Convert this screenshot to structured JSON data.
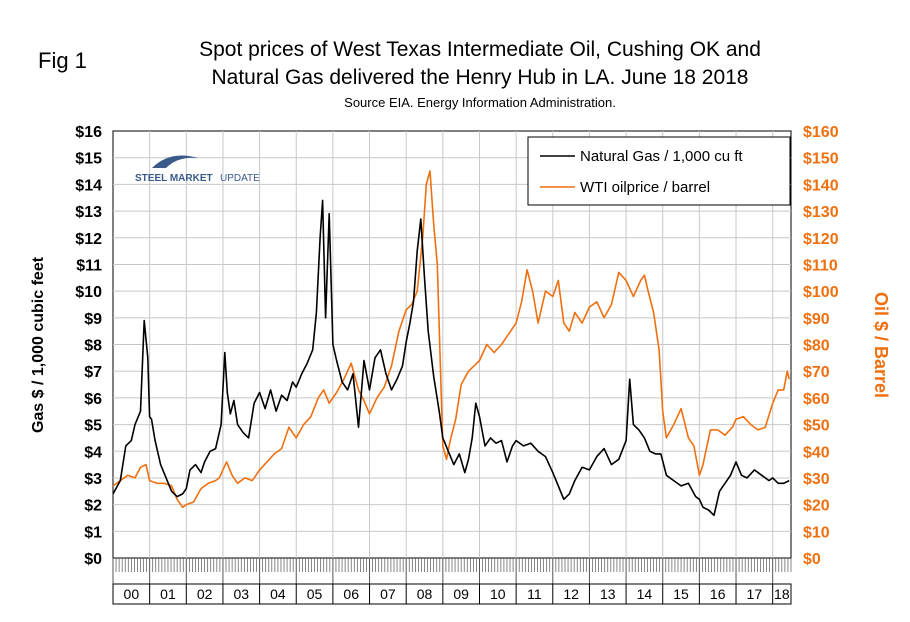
{
  "figure_label": "Fig 1",
  "title_line1": "Spot prices of West Texas Intermediate Oil, Cushing OK and",
  "title_line2": "Natural Gas delivered the Henry Hub in LA. June 18 2018",
  "subtitle": "Source EIA. Energy Information Administration.",
  "logo": {
    "text_bold": "STEEL MARKET",
    "text_light": "UPDATE"
  },
  "colors": {
    "gas": "#000000",
    "oil": "#f07010"
  },
  "chart_data": {
    "type": "line",
    "xlabel": "",
    "ylabel_left": "Gas $ / 1,000 cubic feet",
    "ylabel_right": "Oil $ / Barrel",
    "x_range": [
      2000.0,
      2018.5
    ],
    "ylim_left": [
      0,
      16
    ],
    "ylim_right": [
      0,
      160
    ],
    "yticks_left": [
      "$0",
      "$1",
      "$2",
      "$3",
      "$4",
      "$5",
      "$6",
      "$7",
      "$8",
      "$9",
      "$10",
      "$11",
      "$12",
      "$13",
      "$14",
      "$15",
      "$16"
    ],
    "yticks_right": [
      "$0",
      "$10",
      "$20",
      "$30",
      "$40",
      "$50",
      "$60",
      "$70",
      "$80",
      "$90",
      "$100",
      "$110",
      "$120",
      "$130",
      "$140",
      "$150",
      "$160"
    ],
    "xticks": [
      "00",
      "01",
      "02",
      "03",
      "04",
      "05",
      "06",
      "07",
      "08",
      "09",
      "10",
      "11",
      "12",
      "13",
      "14",
      "15",
      "16",
      "17",
      "18"
    ],
    "legend": [
      "Natural Gas / 1,000 cu ft",
      "WTI oilprice / barrel"
    ],
    "series": [
      {
        "name": "Natural Gas / 1,000 cu ft",
        "axis": "left",
        "x": [
          2000.0,
          2000.2,
          2000.35,
          2000.5,
          2000.6,
          2000.75,
          2000.85,
          2000.95,
          2001.0,
          2001.05,
          2001.15,
          2001.3,
          2001.45,
          2001.6,
          2001.75,
          2001.9,
          2002.0,
          2002.1,
          2002.25,
          2002.4,
          2002.5,
          2002.65,
          2002.8,
          2002.95,
          2003.05,
          2003.12,
          2003.2,
          2003.3,
          2003.4,
          2003.55,
          2003.7,
          2003.85,
          2004.0,
          2004.15,
          2004.3,
          2004.45,
          2004.6,
          2004.75,
          2004.9,
          2005.0,
          2005.15,
          2005.3,
          2005.45,
          2005.55,
          2005.65,
          2005.72,
          2005.8,
          2005.9,
          2006.0,
          2006.1,
          2006.25,
          2006.4,
          2006.55,
          2006.7,
          2006.85,
          2007.0,
          2007.15,
          2007.3,
          2007.45,
          2007.6,
          2007.75,
          2007.9,
          2008.0,
          2008.1,
          2008.2,
          2008.3,
          2008.4,
          2008.5,
          2008.6,
          2008.75,
          2008.9,
          2009.0,
          2009.15,
          2009.3,
          2009.45,
          2009.6,
          2009.7,
          2009.8,
          2009.9,
          2010.0,
          2010.15,
          2010.3,
          2010.45,
          2010.6,
          2010.75,
          2010.9,
          2011.0,
          2011.2,
          2011.4,
          2011.6,
          2011.8,
          2012.0,
          2012.15,
          2012.3,
          2012.45,
          2012.6,
          2012.8,
          2013.0,
          2013.2,
          2013.4,
          2013.6,
          2013.8,
          2014.0,
          2014.1,
          2014.2,
          2014.35,
          2014.5,
          2014.65,
          2014.8,
          2014.95,
          2015.1,
          2015.3,
          2015.5,
          2015.7,
          2015.9,
          2016.0,
          2016.1,
          2016.25,
          2016.4,
          2016.55,
          2016.7,
          2016.85,
          2017.0,
          2017.15,
          2017.3,
          2017.5,
          2017.7,
          2017.9,
          2018.0,
          2018.15,
          2018.3,
          2018.45
        ],
        "values": [
          2.4,
          2.9,
          4.2,
          4.4,
          5.0,
          5.5,
          8.9,
          7.5,
          5.3,
          5.2,
          4.4,
          3.5,
          3.0,
          2.5,
          2.3,
          2.4,
          2.6,
          3.3,
          3.5,
          3.2,
          3.6,
          4.0,
          4.1,
          5.0,
          7.7,
          6.2,
          5.4,
          5.9,
          5.0,
          4.7,
          4.5,
          5.8,
          6.2,
          5.6,
          6.3,
          5.5,
          6.1,
          5.9,
          6.6,
          6.4,
          6.9,
          7.3,
          7.8,
          9.2,
          12.0,
          13.4,
          9.0,
          12.9,
          8.0,
          7.4,
          6.6,
          6.3,
          6.9,
          4.9,
          7.4,
          6.3,
          7.5,
          7.8,
          6.9,
          6.3,
          6.7,
          7.2,
          8.1,
          8.8,
          9.6,
          11.5,
          12.7,
          10.5,
          8.5,
          6.8,
          5.5,
          4.5,
          4.0,
          3.5,
          3.9,
          3.2,
          3.7,
          4.5,
          5.8,
          5.3,
          4.2,
          4.5,
          4.3,
          4.4,
          3.6,
          4.2,
          4.4,
          4.2,
          4.3,
          4.0,
          3.8,
          3.2,
          2.7,
          2.2,
          2.4,
          2.9,
          3.4,
          3.3,
          3.8,
          4.1,
          3.5,
          3.7,
          4.4,
          6.7,
          5.0,
          4.8,
          4.5,
          4.0,
          3.9,
          3.9,
          3.1,
          2.9,
          2.7,
          2.8,
          2.3,
          2.2,
          1.9,
          1.8,
          1.6,
          2.5,
          2.8,
          3.1,
          3.6,
          3.1,
          3.0,
          3.3,
          3.1,
          2.9,
          3.0,
          2.8,
          2.8,
          2.9
        ]
      },
      {
        "name": "WTI oilprice / barrel",
        "axis": "right",
        "x": [
          2000.0,
          2000.2,
          2000.4,
          2000.6,
          2000.75,
          2000.9,
          2001.0,
          2001.2,
          2001.4,
          2001.6,
          2001.75,
          2001.9,
          2002.0,
          2002.2,
          2002.4,
          2002.6,
          2002.8,
          2002.9,
          2003.0,
          2003.1,
          2003.25,
          2003.4,
          2003.6,
          2003.8,
          2004.0,
          2004.2,
          2004.4,
          2004.6,
          2004.8,
          2005.0,
          2005.2,
          2005.4,
          2005.6,
          2005.75,
          2005.9,
          2006.1,
          2006.3,
          2006.5,
          2006.7,
          2006.85,
          2007.0,
          2007.2,
          2007.4,
          2007.6,
          2007.8,
          2008.0,
          2008.15,
          2008.3,
          2008.45,
          2008.55,
          2008.65,
          2008.75,
          2008.85,
          2009.0,
          2009.1,
          2009.2,
          2009.35,
          2009.5,
          2009.7,
          2009.85,
          2010.0,
          2010.2,
          2010.4,
          2010.6,
          2010.8,
          2011.0,
          2011.15,
          2011.3,
          2011.45,
          2011.6,
          2011.8,
          2012.0,
          2012.15,
          2012.3,
          2012.45,
          2012.6,
          2012.8,
          2013.0,
          2013.2,
          2013.4,
          2013.6,
          2013.8,
          2014.0,
          2014.2,
          2014.4,
          2014.5,
          2014.6,
          2014.75,
          2014.9,
          2015.0,
          2015.1,
          2015.3,
          2015.5,
          2015.7,
          2015.85,
          2016.0,
          2016.1,
          2016.3,
          2016.5,
          2016.7,
          2016.9,
          2017.0,
          2017.2,
          2017.4,
          2017.6,
          2017.8,
          2018.0,
          2018.15,
          2018.3,
          2018.4,
          2018.45
        ],
        "values": [
          27,
          29,
          31,
          30,
          34,
          35,
          29,
          28,
          28,
          27,
          22,
          19,
          20,
          21,
          26,
          28,
          29,
          30,
          33,
          36,
          31,
          28,
          30,
          29,
          33,
          36,
          39,
          41,
          49,
          45,
          50,
          53,
          60,
          63,
          58,
          62,
          67,
          73,
          63,
          59,
          54,
          60,
          64,
          72,
          85,
          93,
          95,
          100,
          120,
          140,
          145,
          125,
          110,
          42,
          37,
          44,
          52,
          65,
          70,
          72,
          74,
          80,
          77,
          80,
          84,
          88,
          96,
          108,
          100,
          88,
          100,
          98,
          104,
          88,
          85,
          92,
          88,
          94,
          96,
          90,
          95,
          107,
          104,
          98,
          104,
          106,
          100,
          92,
          78,
          55,
          45,
          50,
          56,
          45,
          42,
          31,
          35,
          48,
          48,
          46,
          49,
          52,
          53,
          50,
          48,
          49,
          58,
          63,
          63,
          70,
          67
        ]
      }
    ]
  }
}
